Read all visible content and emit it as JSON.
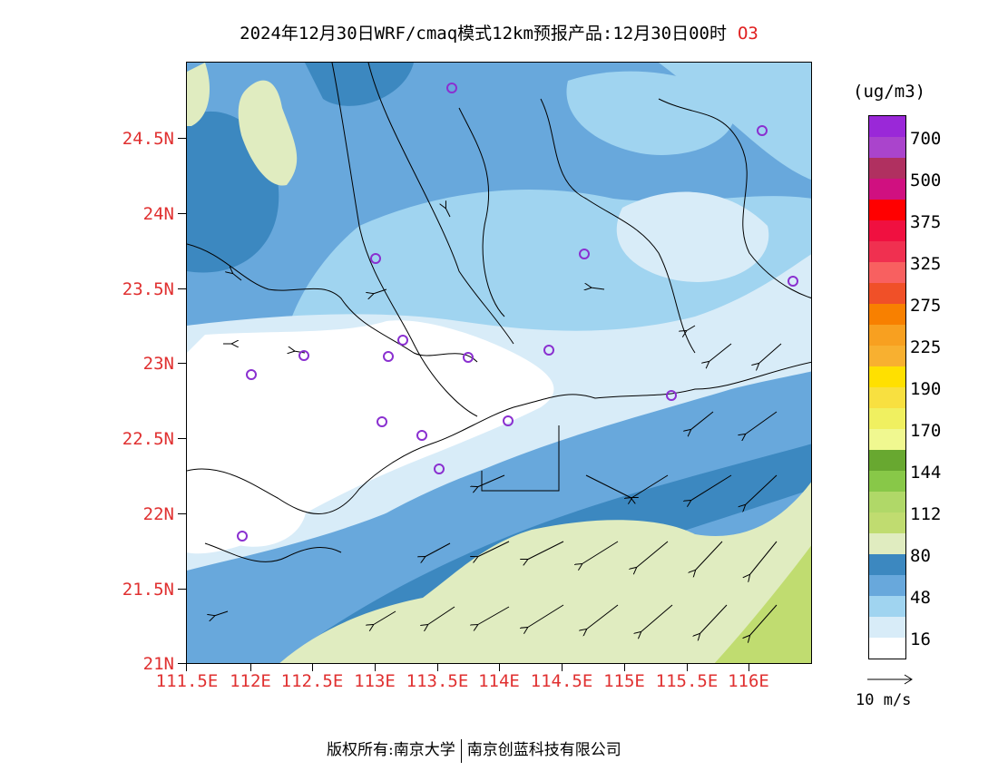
{
  "title": {
    "text": "2024年12月30日WRF/cmaq模式12km预报产品:12月30日00时",
    "species": "O3"
  },
  "axes": {
    "lat_labels": [
      "24.5N",
      "24N",
      "23.5N",
      "23N",
      "22.5N",
      "22N",
      "21.5N",
      "21N"
    ],
    "lon_labels": [
      "111.5E",
      "112E",
      "112.5E",
      "113E",
      "113.5E",
      "114E",
      "114.5E",
      "115E",
      "115.5E",
      "116E"
    ]
  },
  "legend": {
    "unit": "(ug/m3)",
    "labels": [
      "700",
      "500",
      "375",
      "325",
      "275",
      "225",
      "190",
      "170",
      "144",
      "112",
      "80",
      "48",
      "16"
    ],
    "colors": [
      "#9a28d8",
      "#aa44cc",
      "#b03060",
      "#d01080",
      "#ff0000",
      "#f01040",
      "#f03050",
      "#f86060",
      "#f05028",
      "#f88000",
      "#f8a020",
      "#f8b030",
      "#ffe000",
      "#f8e040",
      "#f0f060",
      "#f0f890",
      "#68a830",
      "#88c848",
      "#b0d868",
      "#c0dc70",
      "#e0ecc0",
      "#3c88c0",
      "#68a8dc",
      "#a0d4f0",
      "#d8ecf8",
      "#ffffff"
    ]
  },
  "wind_reference": {
    "label": "10  m/s"
  },
  "footer": {
    "left": "版权所有:南京大学",
    "right": "南京创蓝科技有限公司"
  },
  "map_colors": {
    "white": "#ffffff",
    "very_light_blue": "#d8ecf8",
    "light_blue": "#a0d4f0",
    "medium_blue": "#68a8dc",
    "dark_blue": "#3c88c0",
    "pale_green": "#e0ecc0",
    "green": "#c0dc70",
    "station_ring": "#8a30d0"
  }
}
